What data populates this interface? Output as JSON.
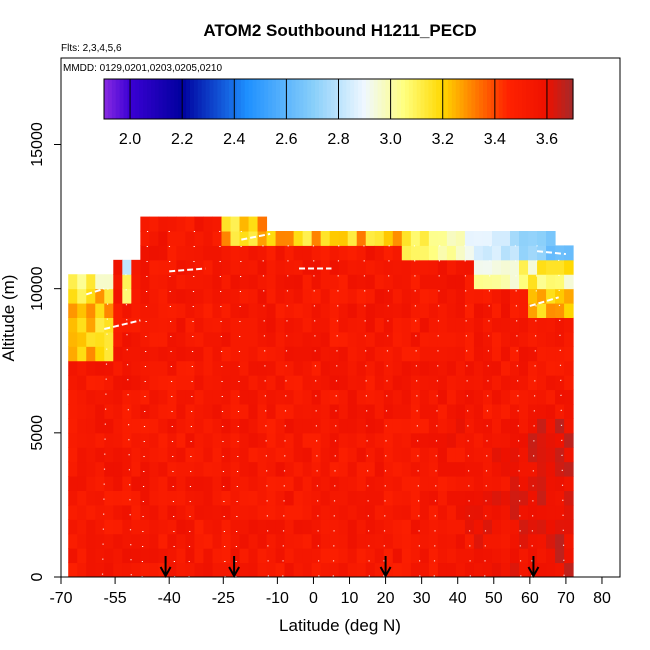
{
  "chart_data": {
    "type": "heatmap",
    "title": "ATOM2 Southbound H1211_PECD",
    "subtitle_flights": "Flts: 2,3,4,5,6",
    "subtitle_dates": "MMDD: 0129,0201,0203,0205,0210",
    "xlabel": "Latitude (deg N)",
    "ylabel": "Altitude (m)",
    "xlim": [
      -70,
      85
    ],
    "ylim": [
      0,
      18000
    ],
    "x_ticks": [
      -70,
      -55,
      -40,
      -25,
      -10,
      0,
      10,
      20,
      30,
      40,
      50,
      60,
      70,
      80
    ],
    "y_ticks": [
      0,
      5000,
      10000,
      15000
    ],
    "colorbar": {
      "range": [
        1.9,
        3.7
      ],
      "ticks": [
        2.0,
        2.2,
        2.4,
        2.6,
        2.8,
        3.0,
        3.2,
        3.4,
        3.6
      ],
      "stops": [
        {
          "v": 1.9,
          "color": "#8a2be2"
        },
        {
          "v": 2.0,
          "color": "#3b00d4"
        },
        {
          "v": 2.2,
          "color": "#00009e"
        },
        {
          "v": 2.45,
          "color": "#1e90ff"
        },
        {
          "v": 2.7,
          "color": "#87cefa"
        },
        {
          "v": 2.9,
          "color": "#f0f8ff"
        },
        {
          "v": 3.05,
          "color": "#ffff80"
        },
        {
          "v": 3.2,
          "color": "#ffd700"
        },
        {
          "v": 3.3,
          "color": "#ff8c00"
        },
        {
          "v": 3.45,
          "color": "#ff2200"
        },
        {
          "v": 3.6,
          "color": "#ee1100"
        },
        {
          "v": 3.7,
          "color": "#a52a2a"
        }
      ]
    },
    "field_extent": {
      "lat_min": -68,
      "lat_max": 72,
      "alt_min": 0,
      "alt_max": 12500
    },
    "features": [
      {
        "name": "tropopause low values",
        "lat_range": [
          20,
          70
        ],
        "alt_range": [
          10500,
          11500
        ],
        "value": 2.6
      },
      {
        "name": "southern upper low values",
        "lat_range": [
          -68,
          -55
        ],
        "alt_range": [
          9000,
          10500
        ],
        "value": 3.0
      },
      {
        "name": "high-latitude surface",
        "lat_range": [
          40,
          72
        ],
        "alt_range": [
          0,
          5000
        ],
        "value": 3.65
      }
    ],
    "arrows_lat": [
      -41,
      -22,
      20,
      61
    ]
  }
}
